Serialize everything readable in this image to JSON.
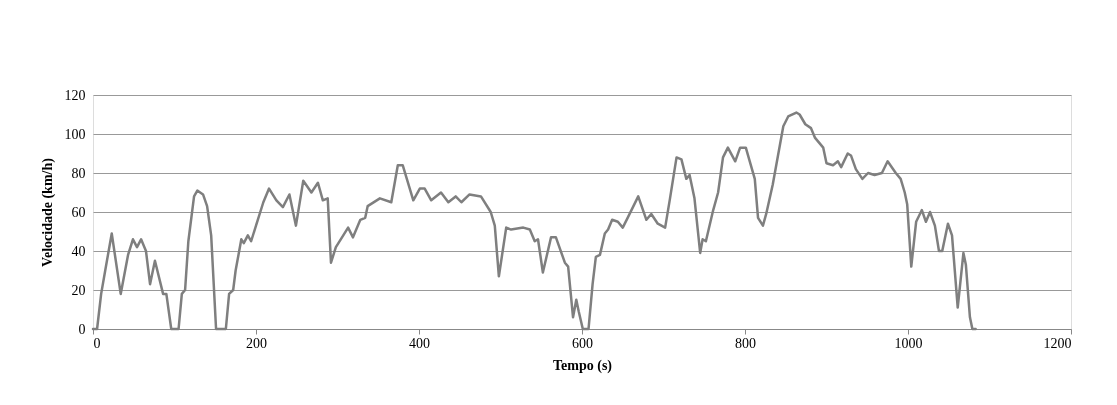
{
  "chart_data": {
    "type": "line",
    "xlabel": "Tempo (s)",
    "ylabel": "Velocidade (km/h)",
    "xlim": [
      0,
      1200
    ],
    "xticks": [
      0,
      200,
      400,
      600,
      800,
      1000,
      1200
    ],
    "ylim": [
      0,
      120
    ],
    "yticks": [
      0,
      20,
      40,
      60,
      80,
      100,
      120
    ],
    "grid": "y",
    "marker": "none",
    "line_style": "solid",
    "series": [
      {
        "color": "#7f7f7f",
        "x": [
          0,
          5,
          10,
          15,
          23,
          34,
          43,
          49,
          54,
          59,
          65,
          70,
          76,
          86,
          90,
          96,
          105,
          109,
          113,
          117,
          124,
          128,
          135,
          140,
          145,
          151,
          163,
          167,
          172,
          175,
          182,
          185,
          190,
          194,
          209,
          216,
          225,
          233,
          241,
          249,
          258,
          268,
          276,
          282,
          288,
          292,
          298,
          304,
          313,
          319,
          328,
          334,
          337,
          352,
          366,
          374,
          380,
          393,
          401,
          407,
          415,
          427,
          436,
          445,
          452,
          462,
          476,
          488,
          493,
          498,
          507,
          513,
          528,
          536,
          542,
          546,
          552,
          562,
          568,
          579,
          583,
          589,
          593,
          596,
          601,
          608,
          613,
          617,
          622,
          628,
          632,
          637,
          644,
          650,
          656,
          669,
          679,
          685,
          693,
          702,
          708,
          716,
          722,
          728,
          732,
          738,
          745,
          748,
          752,
          761,
          767,
          773,
          779,
          788,
          794,
          801,
          812,
          816,
          822,
          826,
          834,
          847,
          853,
          863,
          867,
          874,
          881,
          886,
          896,
          900,
          908,
          914,
          918,
          926,
          930,
          936,
          944,
          951,
          959,
          968,
          975,
          985,
          991,
          996,
          999,
          1004,
          1010,
          1017,
          1022,
          1027,
          1033,
          1038,
          1042,
          1049,
          1054,
          1061,
          1068,
          1071,
          1076,
          1079,
          1083
        ],
        "values": [
          0,
          0,
          18,
          30,
          49,
          18,
          38,
          46,
          42,
          46,
          40,
          23,
          35,
          18,
          18,
          0,
          0,
          18,
          20,
          45,
          68,
          71,
          69,
          63,
          48,
          0,
          0,
          18,
          20,
          30,
          46,
          44,
          48,
          45,
          65,
          72,
          66,
          62.5,
          69,
          53,
          76,
          70,
          75,
          66,
          67,
          34,
          42,
          46,
          52,
          47,
          56,
          57,
          63,
          67,
          65,
          84,
          84,
          66,
          72,
          72,
          66,
          70,
          65,
          68,
          65,
          69,
          68,
          60,
          53,
          27,
          52,
          51,
          52,
          51,
          45,
          46,
          29,
          47,
          47,
          34,
          32,
          6,
          15,
          9,
          0,
          0,
          23,
          37,
          38,
          49,
          51,
          56,
          55,
          52,
          57,
          68,
          56,
          59,
          54,
          52,
          67,
          88,
          87,
          77,
          79,
          67,
          39,
          46,
          45,
          61,
          70,
          88,
          93,
          86,
          93,
          93,
          77,
          57,
          53,
          59,
          74,
          104,
          109,
          111,
          110,
          105,
          103,
          98,
          93,
          85,
          84,
          86,
          83,
          90,
          89,
          82,
          77,
          80,
          79,
          80,
          86,
          80,
          77,
          70,
          64,
          32,
          55,
          61,
          55,
          60,
          53,
          40,
          40,
          54,
          48,
          11,
          39,
          33,
          6,
          0,
          0
        ]
      }
    ]
  }
}
